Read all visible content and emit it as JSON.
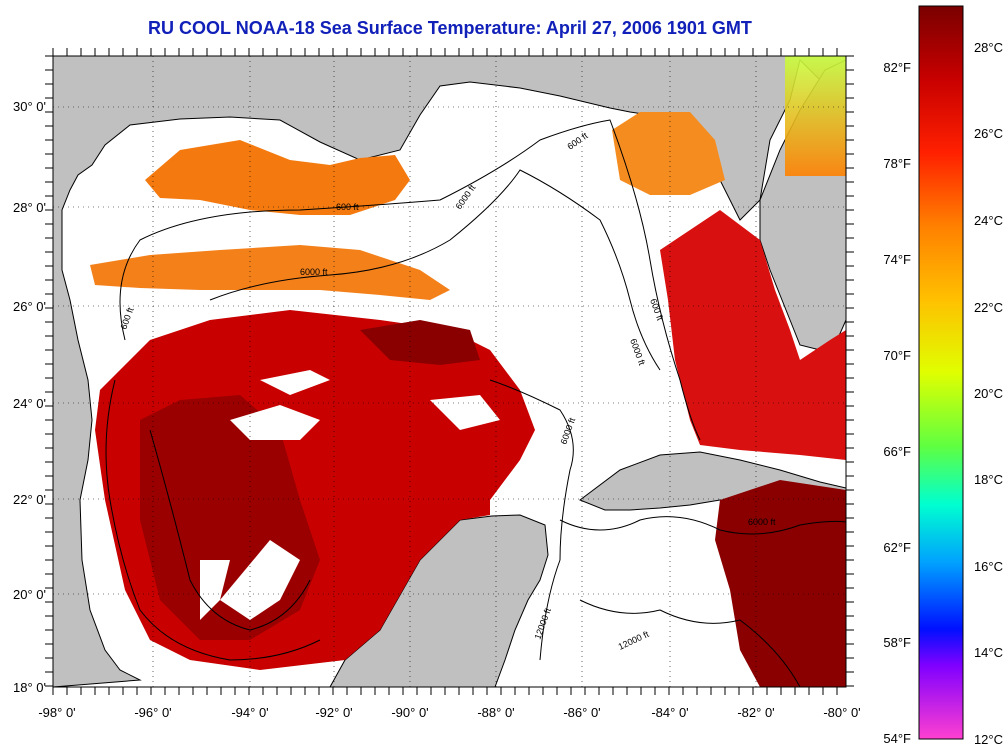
{
  "title": "RU COOL  NOAA-18  Sea Surface Temperature:  April 27, 2006 1901 GMT",
  "map": {
    "lat_labels": [
      "30° 0'",
      "28° 0'",
      "26° 0'",
      "24° 0'",
      "22° 0'",
      "20° 0'",
      "18° 0'"
    ],
    "lon_labels": [
      "-98° 0'",
      "-96° 0'",
      "-94° 0'",
      "-92° 0'",
      "-90° 0'",
      "-88° 0'",
      "-86° 0'",
      "-84° 0'",
      "-82° 0'",
      "-80° 0'"
    ],
    "contour_labels": [
      "600 ft",
      "6000 ft",
      "600 ft",
      "6000 ft",
      "600 ft",
      "6000 ft",
      "6000 ft",
      "600 ft",
      "12000 ft",
      "12000 ft",
      "6000 ft"
    ]
  },
  "colorbar": {
    "celsius_labels": [
      "28°C",
      "26°C",
      "24°C",
      "22°C",
      "20°C",
      "18°C",
      "16°C",
      "14°C",
      "12°C"
    ],
    "fahrenheit_labels": [
      "82°F",
      "78°F",
      "74°F",
      "70°F",
      "66°F",
      "62°F",
      "58°F",
      "54°F"
    ]
  },
  "colors": {
    "title": "#1020b8",
    "land": "#c0c0c0",
    "no_data": "#ffffff",
    "sst_warm": "#c00000",
    "sst_hot": "#8a0000"
  }
}
